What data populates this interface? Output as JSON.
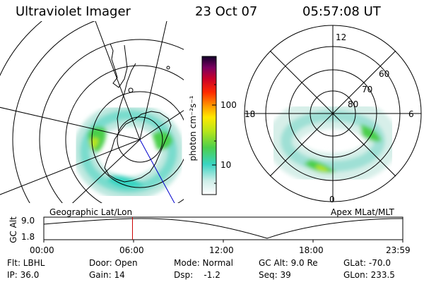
{
  "header": {
    "instrument": "Ultraviolet Imager",
    "date": "23 Oct 07",
    "time": "05:57:08 UT"
  },
  "left_panel": {
    "projection_label": "Geographic Lat/Lon"
  },
  "right_panel": {
    "projection_label": "Apex MLat/MLT",
    "mlt_labels": [
      "12",
      "18",
      "6",
      "0"
    ],
    "lat_labels": [
      "60",
      "70",
      "80"
    ]
  },
  "colorbar": {
    "unit_label": "photon cm⁻²s⁻¹",
    "ticks": [
      "100",
      "10"
    ],
    "scale": "log",
    "colors": [
      "#ffffff",
      "#cdeee8",
      "#39d4c2",
      "#4ccf4c",
      "#b8e61a",
      "#ffe800",
      "#ff9a00",
      "#ff2a00",
      "#c8002a",
      "#7a0060",
      "#12002a"
    ]
  },
  "altitude_strip": {
    "axis_label": "GC Alt",
    "y_ticks": [
      "9.0",
      "1.8"
    ],
    "x_ticks": [
      "00:00",
      "06:00",
      "12:00",
      "18:00",
      "23:59"
    ],
    "current_time_fraction": 0.247,
    "marker_color": "#cc0000"
  },
  "status": {
    "filter": "Flt: LBHL",
    "door": "Door: Open",
    "mode": "Mode: Normal",
    "gc_alt": "GC Alt: 9.0 Re",
    "glat": "GLat: -70.0",
    "ip": "IP: 36.0",
    "gain": "Gain: 14",
    "dsp": "Dsp:    -1.2",
    "seq": "Seq: 39",
    "glon": "GLon: 233.5"
  }
}
